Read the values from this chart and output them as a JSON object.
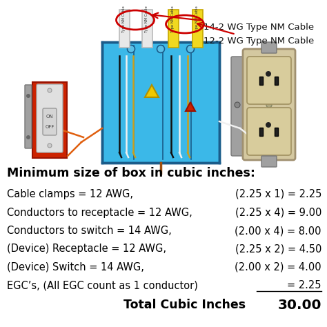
{
  "bg_color": "#ffffff",
  "label_14_2": "14-2 WG Type NM Cable",
  "label_12_2": "12-2 WG Type NM Cable",
  "section_title": "Minimum size of box in cubic inches:",
  "rows": [
    {
      "left": "Cable clamps = 12 AWG,",
      "right": "(2.25 x 1) = 2.25",
      "underline_right": false
    },
    {
      "left": "Conductors to receptacle = 12 AWG,",
      "right": "(2.25 x 4) = 9.00",
      "underline_right": false
    },
    {
      "left": "Conductors to switch = 14 AWG,",
      "right": "(2.00 x 4) = 8.00",
      "underline_right": false
    },
    {
      "left": "(Device) Receptacle = 12 AWG,",
      "right": "(2.25 x 2) = 4.50",
      "underline_right": false
    },
    {
      "left": "(Device) Switch = 14 AWG,",
      "right": "(2.00 x 2) = 4.00",
      "underline_right": false
    },
    {
      "left": "EGC’s, (All EGC count as 1 conductor)",
      "right": "= 2.25",
      "underline_right": true
    }
  ],
  "total_label": "Total Cubic Inches",
  "total_value": "30.00",
  "fig_width": 4.74,
  "fig_height": 4.74,
  "dpi": 100,
  "title_fontsize": 12.5,
  "row_fontsize": 10.5,
  "total_fontsize": 12.5,
  "text_color": "#000000",
  "title_color": "#000000",
  "box_blue": "#3bb8e8",
  "box_edge": "#1a5c8a",
  "cable_white": "#e8e8e8",
  "cable_yellow": "#f0d820",
  "arrow_red": "#cc0000",
  "switch_red": "#cc2200",
  "switch_plate": "#e0e0e0",
  "receptacle_plate": "#d4c8a0",
  "receptacle_face": "#d8cc9c",
  "wire_black": "#111111",
  "wire_white": "#f0f0f0",
  "wire_gold": "#c8a020",
  "wire_orange": "#e06010",
  "wirenuts_yellow": "#f0c800",
  "wirenuts_red": "#cc2200",
  "bracket_gray": "#a0a0a0"
}
